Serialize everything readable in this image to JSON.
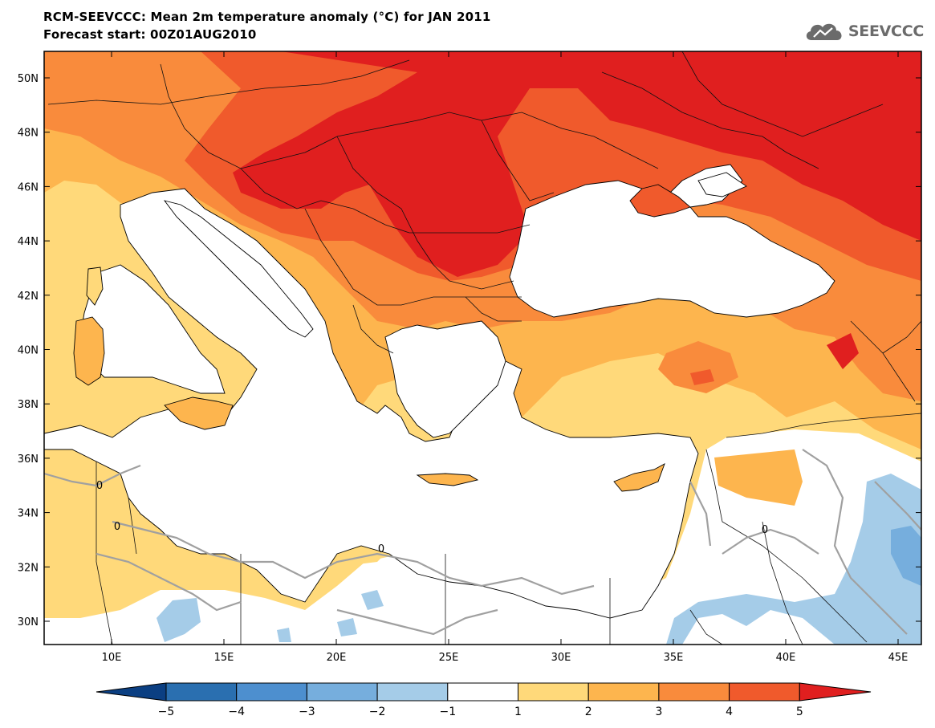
{
  "title_line1": "RCM-SEEVCCC: Mean 2m temperature anomaly (°C) for JAN 2011",
  "title_line2": "Forecast start: 00Z01AUG2010",
  "logo_text": "SEEVCCC",
  "contour_label": "0",
  "lat_ticks": [
    "50N",
    "48N",
    "46N",
    "44N",
    "42N",
    "40N",
    "38N",
    "36N",
    "34N",
    "32N",
    "30N"
  ],
  "lon_ticks": [
    "10E",
    "15E",
    "20E",
    "25E",
    "30E",
    "35E",
    "40E",
    "45E"
  ],
  "colorbar": {
    "labels": [
      "−5",
      "−4",
      "−3",
      "−2",
      "−1",
      "1",
      "2",
      "3",
      "4",
      "5"
    ],
    "colors": [
      "#0b3f82",
      "#2a6fb0",
      "#4d8fcf",
      "#76aedd",
      "#a5cce8",
      "#ffffff",
      "#ffd97a",
      "#fdb54e",
      "#f98b3c",
      "#f05a2c",
      "#e01f1f"
    ]
  },
  "colors": {
    "warm_1_2": "#ffd97a",
    "warm_2_3": "#fdb54e",
    "warm_3_4": "#f98b3c",
    "warm_4_5": "#f05a2c",
    "warm_gt5": "#e01f1f",
    "cool_m1_m2": "#a5cce8",
    "cool_m2_m3": "#76aedd",
    "zero_contour": "#a0a0a0"
  }
}
